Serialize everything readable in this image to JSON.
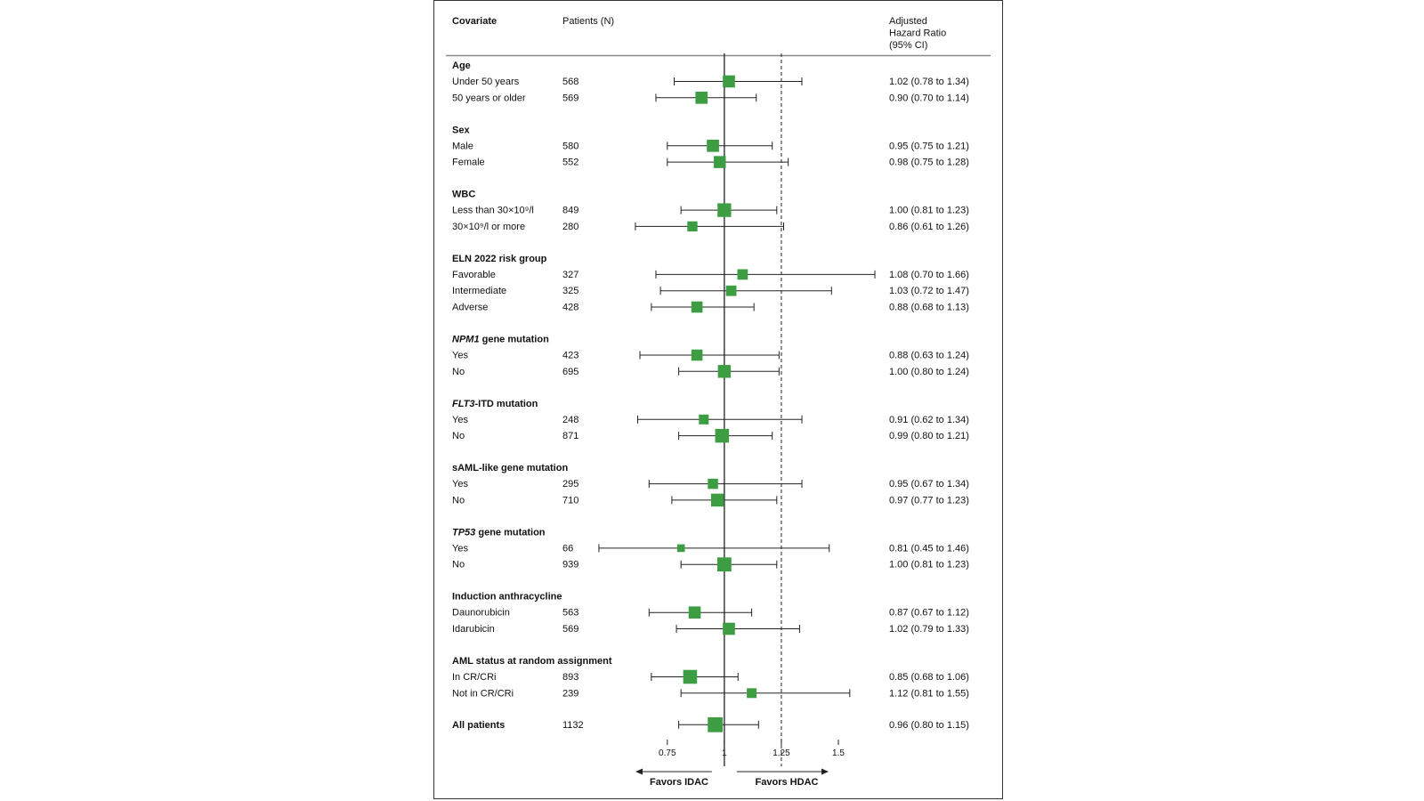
{
  "header": {
    "covariate": "Covariate",
    "patients": "Patients (N)",
    "hr": [
      "Adjusted",
      "Hazard Ratio",
      "(95% CI)"
    ]
  },
  "colors": {
    "marker": "#3c9d43",
    "line": "#222222",
    "axis": "#222222"
  },
  "chart_data": {
    "type": "forest",
    "axis": {
      "ticks": [
        0.75,
        1,
        1.25,
        1.5
      ],
      "tick_labels": [
        "0.75",
        "1",
        "1.25",
        "1.5"
      ],
      "range": [
        0.505,
        1.66
      ],
      "null_line": 1,
      "reference_dashed": 1.25
    },
    "arrows": {
      "left": "Favors IDAC",
      "right": "Favors HDAC"
    },
    "groups": [
      {
        "title": "Age",
        "rows": [
          {
            "label": "Under 50 years",
            "n": "568",
            "hr": 1.02,
            "lo": 0.78,
            "hi": 1.34,
            "text": "1.02 (0.78 to 1.34)"
          },
          {
            "label": "50 years or older",
            "n": "569",
            "hr": 0.9,
            "lo": 0.7,
            "hi": 1.14,
            "text": "0.90 (0.70 to 1.14)"
          }
        ]
      },
      {
        "title": "Sex",
        "rows": [
          {
            "label": "Male",
            "n": "580",
            "hr": 0.95,
            "lo": 0.75,
            "hi": 1.21,
            "text": "0.95 (0.75 to 1.21)"
          },
          {
            "label": "Female",
            "n": "552",
            "hr": 0.98,
            "lo": 0.75,
            "hi": 1.28,
            "text": "0.98 (0.75 to 1.28)"
          }
        ]
      },
      {
        "title": "WBC",
        "rows": [
          {
            "label": "Less than 30×10⁹/l",
            "n": "849",
            "hr": 1.0,
            "lo": 0.81,
            "hi": 1.23,
            "text": "1.00 (0.81 to 1.23)"
          },
          {
            "label": "30×10⁹/l or more",
            "n": "280",
            "hr": 0.86,
            "lo": 0.61,
            "hi": 1.26,
            "text": "0.86 (0.61 to 1.26)"
          }
        ]
      },
      {
        "title": "ELN 2022 risk group",
        "rows": [
          {
            "label": "Favorable",
            "n": "327",
            "hr": 1.08,
            "lo": 0.7,
            "hi": 1.66,
            "text": "1.08 (0.70 to 1.66)"
          },
          {
            "label": "Intermediate",
            "n": "325",
            "hr": 1.03,
            "lo": 0.72,
            "hi": 1.47,
            "text": "1.03 (0.72 to 1.47)"
          },
          {
            "label": "Adverse",
            "n": "428",
            "hr": 0.88,
            "lo": 0.68,
            "hi": 1.13,
            "text": "0.88 (0.68 to 1.13)"
          }
        ]
      },
      {
        "title_italic": "NPM1",
        "title": " gene mutation",
        "rows": [
          {
            "label": "Yes",
            "n": "423",
            "hr": 0.88,
            "lo": 0.63,
            "hi": 1.24,
            "text": "0.88 (0.63 to 1.24)"
          },
          {
            "label": "No",
            "n": "695",
            "hr": 1.0,
            "lo": 0.8,
            "hi": 1.24,
            "text": "1.00 (0.80 to 1.24)"
          }
        ]
      },
      {
        "title_italic": "FLT3",
        "title": "-ITD mutation",
        "rows": [
          {
            "label": "Yes",
            "n": "248",
            "hr": 0.91,
            "lo": 0.62,
            "hi": 1.34,
            "text": "0.91 (0.62 to 1.34)"
          },
          {
            "label": "No",
            "n": "871",
            "hr": 0.99,
            "lo": 0.8,
            "hi": 1.21,
            "text": "0.99 (0.80 to 1.21)"
          }
        ]
      },
      {
        "title": "sAML-like gene mutation",
        "rows": [
          {
            "label": "Yes",
            "n": "295",
            "hr": 0.95,
            "lo": 0.67,
            "hi": 1.34,
            "text": "0.95 (0.67 to 1.34)"
          },
          {
            "label": "No",
            "n": "710",
            "hr": 0.97,
            "lo": 0.77,
            "hi": 1.23,
            "text": "0.97 (0.77 to 1.23)"
          }
        ]
      },
      {
        "title_italic": "TP53",
        "title": " gene mutation",
        "rows": [
          {
            "label": "Yes",
            "n": "66",
            "hr": 0.81,
            "lo": 0.45,
            "hi": 1.46,
            "text": "0.81 (0.45 to 1.46)"
          },
          {
            "label": "No",
            "n": "939",
            "hr": 1.0,
            "lo": 0.81,
            "hi": 1.23,
            "text": "1.00 (0.81 to 1.23)"
          }
        ]
      },
      {
        "title": "Induction anthracycline",
        "rows": [
          {
            "label": "Daunorubicin",
            "n": "563",
            "hr": 0.87,
            "lo": 0.67,
            "hi": 1.12,
            "text": "0.87 (0.67 to 1.12)"
          },
          {
            "label": "Idarubicin",
            "n": "569",
            "hr": 1.02,
            "lo": 0.79,
            "hi": 1.33,
            "text": "1.02 (0.79 to 1.33)"
          }
        ]
      },
      {
        "title": "AML status at random assignment",
        "rows": [
          {
            "label": "In CR/CRi",
            "n": "893",
            "hr": 0.85,
            "lo": 0.68,
            "hi": 1.06,
            "text": "0.85 (0.68 to 1.06)"
          },
          {
            "label": "Not in CR/CRi",
            "n": "239",
            "hr": 1.12,
            "lo": 0.81,
            "hi": 1.55,
            "text": "1.12 (0.81 to 1.55)"
          }
        ]
      }
    ],
    "overall": {
      "label": "All patients",
      "n": "1132",
      "hr": 0.96,
      "lo": 0.8,
      "hi": 1.15,
      "text": "0.96 (0.80 to 1.15)"
    }
  }
}
